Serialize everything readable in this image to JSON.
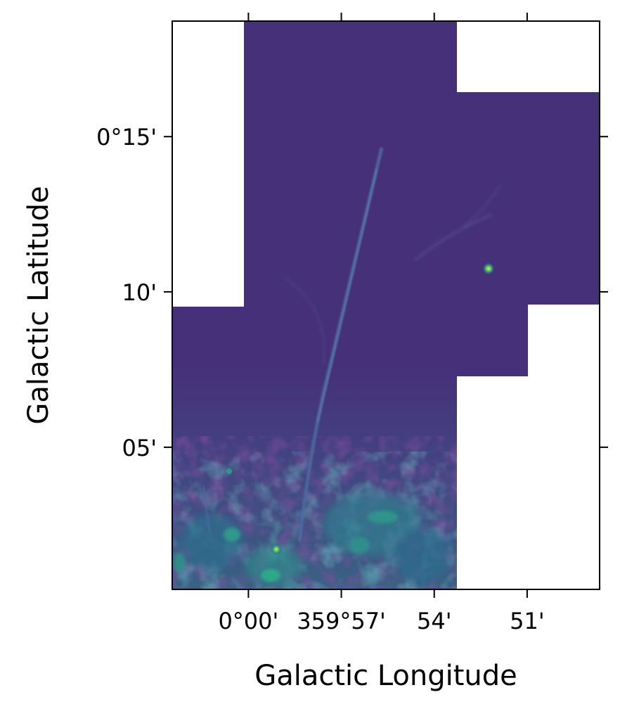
{
  "chart_data": {
    "type": "heatmap",
    "title": "",
    "xlabel": "Galactic Longitude",
    "ylabel": "Galactic Latitude",
    "colormap": "viridis",
    "colors": {
      "background_field": "#46307a",
      "dark_noise": "#3f1f62",
      "filament": "#4a6fa0",
      "emission": "#2f8f8c",
      "hot_source": "#fde725"
    },
    "x_axis": {
      "direction": "decreasing-right",
      "ticks": [
        {
          "value_deg": 0.0,
          "label": "0°00'"
        },
        {
          "value_deg": 359.95,
          "label": "359°57'"
        },
        {
          "value_deg": 359.9,
          "label": "54'"
        },
        {
          "value_deg": 359.85,
          "label": "51'"
        }
      ],
      "range_deg": [
        0.041,
        359.811
      ]
    },
    "y_axis": {
      "ticks": [
        {
          "value_deg": 0.25,
          "label": "0°15'"
        },
        {
          "value_deg": 0.1667,
          "label": "10'"
        },
        {
          "value_deg": 0.0833,
          "label": "05'"
        }
      ],
      "range_deg": [
        0.007,
        0.312
      ]
    },
    "grid": false,
    "features": {
      "filament": "radio non-thermal filament rising from the lower emission region toward upper center",
      "bright_source": "compact bright source at the right of the mosaic",
      "emission_region": "diffuse bright emission along the bottom edge"
    }
  }
}
